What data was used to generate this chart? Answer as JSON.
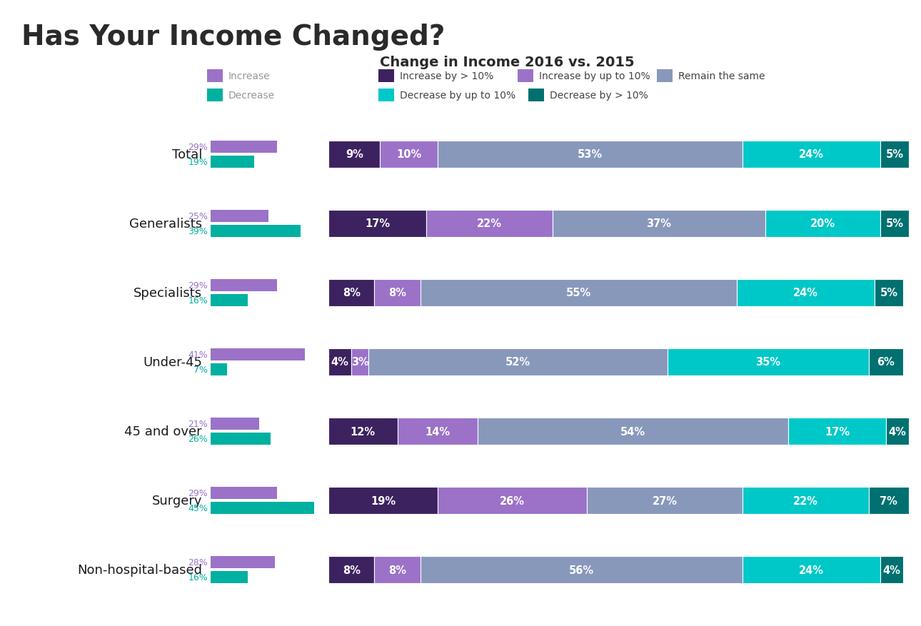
{
  "title_main": "Has Your Income Changed?",
  "title_sub": "Change in Income 2016 vs. 2015",
  "categories": [
    "Total",
    "Generalists",
    "Specialists",
    "Under-45",
    "45 and over",
    "Surgery",
    "Non-hospital-based"
  ],
  "increase_pct": [
    29,
    25,
    29,
    41,
    21,
    29,
    28
  ],
  "decrease_pct": [
    19,
    39,
    16,
    7,
    26,
    45,
    16
  ],
  "stacked_data": {
    "inc_gt10": [
      9,
      17,
      8,
      4,
      12,
      19,
      8
    ],
    "inc_lt10": [
      10,
      22,
      8,
      3,
      14,
      26,
      8
    ],
    "same": [
      53,
      37,
      55,
      52,
      54,
      27,
      56
    ],
    "dec_lt10": [
      24,
      20,
      24,
      35,
      17,
      22,
      24
    ],
    "dec_gt10": [
      5,
      5,
      5,
      6,
      4,
      7,
      4
    ]
  },
  "colors": {
    "inc_gt10": "#3d2260",
    "inc_lt10": "#9b72c8",
    "same": "#8898bb",
    "dec_lt10": "#00c8c8",
    "dec_gt10": "#007070",
    "increase": "#9b72c8",
    "decrease": "#00b0a0"
  },
  "legend_labels": {
    "increase": "Increase",
    "decrease": "Decrease",
    "inc_gt10": "Increase by > 10%",
    "inc_lt10": "Increase by up to 10%",
    "same": "Remain the same",
    "dec_lt10": "Decrease by up to 10%",
    "dec_gt10": "Decrease by > 10%"
  },
  "text_color_increase": "#9b72c8",
  "text_color_decrease": "#00b0a0",
  "background_color": "#ffffff"
}
